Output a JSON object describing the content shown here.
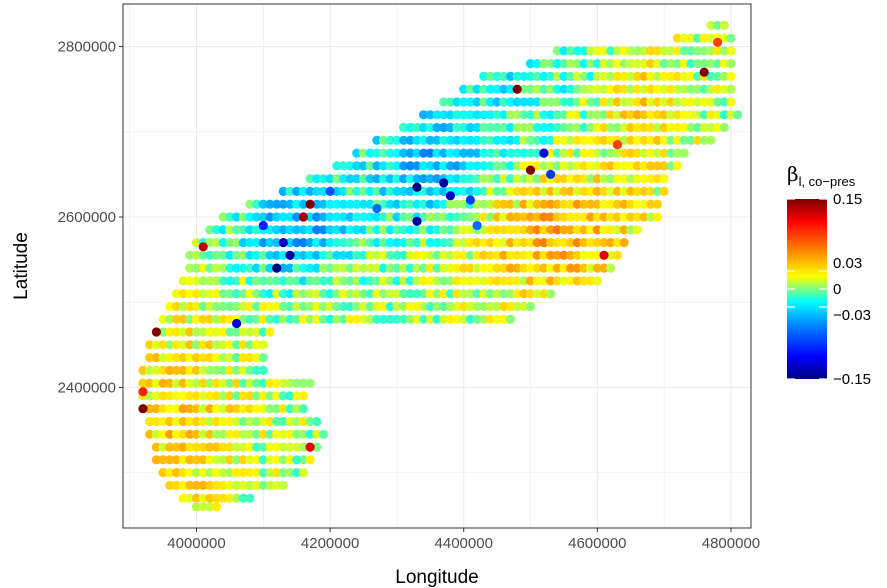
{
  "chart_data": {
    "type": "scatter",
    "title": "",
    "xlabel": "Longitude",
    "ylabel": "Latitude",
    "xlim": [
      3890000,
      4830000
    ],
    "ylim": [
      2235000,
      2850000
    ],
    "x_ticks": [
      4000000,
      4200000,
      4400000,
      4600000,
      4800000
    ],
    "x_tick_labels": [
      "4000000",
      "4200000",
      "4400000",
      "4600000",
      "4800000"
    ],
    "y_ticks": [
      2400000,
      2600000,
      2800000
    ],
    "y_tick_labels": [
      "2400000",
      "2600000",
      "2800000"
    ],
    "grid": true,
    "legend": {
      "title_symbol": "β",
      "title_subscript": "l, co−pres",
      "position": "right",
      "range": [
        -0.15,
        0.15
      ],
      "ticks": [
        0.15,
        0.03,
        0,
        -0.03,
        -0.15
      ],
      "tick_labels": [
        "0.15",
        "0.03",
        "0",
        "−0.03",
        "−0.15"
      ],
      "colors": [
        "#00007F",
        "#0000FF",
        "#007FFF",
        "#00FFFF",
        "#7FFF7F",
        "#FFFF00",
        "#FF7F00",
        "#FF0000",
        "#7F0000"
      ]
    },
    "grid_spacing": 10000,
    "region_rows": [
      {
        "y": 2825000,
        "x_start": 4770000,
        "x_end": 4790000
      },
      {
        "y": 2810000,
        "x_start": 4720000,
        "x_end": 4800000
      },
      {
        "y": 2795000,
        "x_start": 4540000,
        "x_end": 4800000
      },
      {
        "y": 2780000,
        "x_start": 4500000,
        "x_end": 4800000
      },
      {
        "y": 2765000,
        "x_start": 4430000,
        "x_end": 4800000
      },
      {
        "y": 2750000,
        "x_start": 4400000,
        "x_end": 4800000
      },
      {
        "y": 2735000,
        "x_start": 4370000,
        "x_end": 4800000
      },
      {
        "y": 2720000,
        "x_start": 4340000,
        "x_end": 4810000
      },
      {
        "y": 2705000,
        "x_start": 4310000,
        "x_end": 4790000
      },
      {
        "y": 2690000,
        "x_start": 4270000,
        "x_end": 4770000
      },
      {
        "y": 2675000,
        "x_start": 4240000,
        "x_end": 4730000
      },
      {
        "y": 2660000,
        "x_start": 4210000,
        "x_end": 4720000
      },
      {
        "y": 2645000,
        "x_start": 4170000,
        "x_end": 4700000
      },
      {
        "y": 2630000,
        "x_start": 4130000,
        "x_end": 4700000
      },
      {
        "y": 2615000,
        "x_start": 4080000,
        "x_end": 4690000
      },
      {
        "y": 2600000,
        "x_start": 4040000,
        "x_end": 4690000
      },
      {
        "y": 2585000,
        "x_start": 4020000,
        "x_end": 4660000
      },
      {
        "y": 2570000,
        "x_start": 4000000,
        "x_end": 4640000
      },
      {
        "y": 2555000,
        "x_start": 3990000,
        "x_end": 4630000
      },
      {
        "y": 2540000,
        "x_start": 3990000,
        "x_end": 4620000
      },
      {
        "y": 2525000,
        "x_start": 3980000,
        "x_end": 4600000
      },
      {
        "y": 2510000,
        "x_start": 3970000,
        "x_end": 4530000
      },
      {
        "y": 2495000,
        "x_start": 3960000,
        "x_end": 4500000
      },
      {
        "y": 2480000,
        "x_start": 3950000,
        "x_end": 4470000
      },
      {
        "y": 2465000,
        "x_start": 3940000,
        "x_end": 4110000
      },
      {
        "y": 2450000,
        "x_start": 3930000,
        "x_end": 4100000
      },
      {
        "y": 2435000,
        "x_start": 3930000,
        "x_end": 4100000
      },
      {
        "y": 2420000,
        "x_start": 3920000,
        "x_end": 4100000
      },
      {
        "y": 2405000,
        "x_start": 3920000,
        "x_end": 4170000
      },
      {
        "y": 2390000,
        "x_start": 3920000,
        "x_end": 4160000
      },
      {
        "y": 2375000,
        "x_start": 3920000,
        "x_end": 4160000
      },
      {
        "y": 2360000,
        "x_start": 3930000,
        "x_end": 4180000
      },
      {
        "y": 2345000,
        "x_start": 3930000,
        "x_end": 4190000
      },
      {
        "y": 2330000,
        "x_start": 3940000,
        "x_end": 4180000
      },
      {
        "y": 2315000,
        "x_start": 3940000,
        "x_end": 4170000
      },
      {
        "y": 2300000,
        "x_start": 3950000,
        "x_end": 4160000
      },
      {
        "y": 2285000,
        "x_start": 3960000,
        "x_end": 4130000
      },
      {
        "y": 2270000,
        "x_start": 3980000,
        "x_end": 4080000
      },
      {
        "y": 2260000,
        "x_start": 4000000,
        "x_end": 4030000
      }
    ],
    "highlight_points": [
      {
        "x": 3920000,
        "y": 2375000,
        "value": 0.15
      },
      {
        "x": 3940000,
        "y": 2465000,
        "value": 0.15
      },
      {
        "x": 4010000,
        "y": 2565000,
        "value": 0.13
      },
      {
        "x": 4170000,
        "y": 2615000,
        "value": 0.15
      },
      {
        "x": 4160000,
        "y": 2600000,
        "value": 0.14
      },
      {
        "x": 4480000,
        "y": 2750000,
        "value": 0.15
      },
      {
        "x": 4500000,
        "y": 2655000,
        "value": 0.15
      },
      {
        "x": 4760000,
        "y": 2770000,
        "value": 0.15
      },
      {
        "x": 4170000,
        "y": 2330000,
        "value": 0.12
      },
      {
        "x": 3920000,
        "y": 2395000,
        "value": 0.1
      },
      {
        "x": 4610000,
        "y": 2555000,
        "value": 0.12
      },
      {
        "x": 4630000,
        "y": 2685000,
        "value": 0.09
      },
      {
        "x": 4780000,
        "y": 2805000,
        "value": 0.09
      },
      {
        "x": 4120000,
        "y": 2540000,
        "value": -0.15
      },
      {
        "x": 4140000,
        "y": 2555000,
        "value": -0.14
      },
      {
        "x": 4130000,
        "y": 2570000,
        "value": -0.13
      },
      {
        "x": 4100000,
        "y": 2590000,
        "value": -0.1
      },
      {
        "x": 4370000,
        "y": 2640000,
        "value": -0.14
      },
      {
        "x": 4380000,
        "y": 2625000,
        "value": -0.13
      },
      {
        "x": 4330000,
        "y": 2595000,
        "value": -0.14
      },
      {
        "x": 4330000,
        "y": 2635000,
        "value": -0.15
      },
      {
        "x": 4520000,
        "y": 2675000,
        "value": -0.12
      },
      {
        "x": 4060000,
        "y": 2475000,
        "value": -0.12
      },
      {
        "x": 4410000,
        "y": 2620000,
        "value": -0.09
      },
      {
        "x": 4200000,
        "y": 2630000,
        "value": -0.08
      },
      {
        "x": 4420000,
        "y": 2590000,
        "value": -0.07
      },
      {
        "x": 4270000,
        "y": 2610000,
        "value": -0.07
      },
      {
        "x": 4530000,
        "y": 2650000,
        "value": -0.09
      }
    ]
  }
}
